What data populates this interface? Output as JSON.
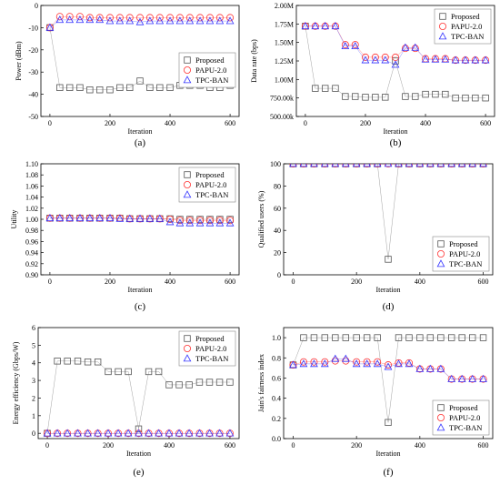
{
  "chart_data": [
    {
      "id": "a",
      "type": "scatter",
      "caption": "(a)",
      "xlabel": "Iteration",
      "ylabel": "Power (dBm)",
      "xlim": [
        -30,
        630
      ],
      "ylim": [
        -50,
        0
      ],
      "xticks": [
        0,
        200,
        400,
        600
      ],
      "yticks": [
        -50,
        -40,
        -30,
        -20,
        -10,
        0
      ],
      "ytick_labels": [
        "-50",
        "-40",
        "-30",
        "-20",
        "-10",
        "0"
      ],
      "legend_pos": "middle-right",
      "series": [
        {
          "name": "Proposed",
          "marker": "square",
          "color": "#555555",
          "x": [
            0,
            33,
            66,
            100,
            133,
            166,
            200,
            233,
            266,
            300,
            333,
            366,
            400,
            433,
            466,
            500,
            533,
            566,
            600
          ],
          "y": [
            -10,
            -37,
            -37,
            -37,
            -38,
            -38,
            -38,
            -37,
            -37,
            -34,
            -37,
            -37,
            -37,
            -36,
            -36,
            -36,
            -37,
            -37,
            -36
          ]
        },
        {
          "name": "PAPU-2.0",
          "marker": "circle",
          "color": "#ff3333",
          "x": [
            0,
            33,
            66,
            100,
            133,
            166,
            200,
            233,
            266,
            300,
            333,
            366,
            400,
            433,
            466,
            500,
            533,
            566,
            600
          ],
          "y": [
            -10,
            -5,
            -5,
            -5,
            -5.5,
            -5.5,
            -5.5,
            -5.5,
            -5.5,
            -5.5,
            -5.5,
            -5.5,
            -5.5,
            -5.5,
            -5.5,
            -5.5,
            -5.5,
            -5.5,
            -5.5
          ]
        },
        {
          "name": "TPC-BAN",
          "marker": "triangle",
          "color": "#3333ff",
          "x": [
            0,
            33,
            66,
            100,
            133,
            166,
            200,
            233,
            266,
            300,
            333,
            366,
            400,
            433,
            466,
            500,
            533,
            566,
            600
          ],
          "y": [
            -10,
            -6.5,
            -6.5,
            -6.5,
            -6.5,
            -6.5,
            -7,
            -7,
            -7,
            -7.5,
            -7,
            -7,
            -7,
            -7,
            -7,
            -7,
            -7,
            -7,
            -7
          ]
        }
      ]
    },
    {
      "id": "b",
      "type": "scatter",
      "caption": "(b)",
      "xlabel": "Iteration",
      "ylabel": "Data rate (bps)",
      "xlim": [
        -30,
        630
      ],
      "ylim": [
        500000,
        2000000
      ],
      "xticks": [
        0,
        200,
        400,
        600
      ],
      "yticks": [
        500000,
        750000,
        1000000,
        1250000,
        1500000,
        1750000,
        2000000
      ],
      "ytick_labels": [
        "500.00k",
        "750.00k",
        "1.00M",
        "1.25M",
        "1.50M",
        "1.75M",
        "2.00M"
      ],
      "legend_pos": "top-right",
      "series": [
        {
          "name": "Proposed",
          "marker": "square",
          "color": "#555555",
          "x": [
            0,
            33,
            66,
            100,
            133,
            166,
            200,
            233,
            266,
            300,
            333,
            366,
            400,
            433,
            466,
            500,
            533,
            566,
            600
          ],
          "y": [
            1720000,
            880000,
            880000,
            880000,
            770000,
            770000,
            760000,
            760000,
            760000,
            1250000,
            770000,
            770000,
            800000,
            800000,
            800000,
            750000,
            750000,
            750000,
            750000
          ]
        },
        {
          "name": "PAPU-2.0",
          "marker": "circle",
          "color": "#ff3333",
          "x": [
            0,
            33,
            66,
            100,
            133,
            166,
            200,
            233,
            266,
            300,
            333,
            366,
            400,
            433,
            466,
            500,
            533,
            566,
            600
          ],
          "y": [
            1720000,
            1720000,
            1720000,
            1720000,
            1470000,
            1470000,
            1300000,
            1300000,
            1300000,
            1300000,
            1420000,
            1420000,
            1280000,
            1280000,
            1280000,
            1260000,
            1260000,
            1260000,
            1260000
          ]
        },
        {
          "name": "TPC-BAN",
          "marker": "triangle",
          "color": "#3333ff",
          "x": [
            0,
            33,
            66,
            100,
            133,
            166,
            200,
            233,
            266,
            300,
            333,
            366,
            400,
            433,
            466,
            500,
            533,
            566,
            600
          ],
          "y": [
            1720000,
            1720000,
            1720000,
            1720000,
            1450000,
            1450000,
            1260000,
            1260000,
            1260000,
            1200000,
            1430000,
            1430000,
            1270000,
            1270000,
            1270000,
            1260000,
            1260000,
            1260000,
            1260000
          ]
        }
      ]
    },
    {
      "id": "c",
      "type": "scatter",
      "caption": "(c)",
      "xlabel": "Iteration",
      "ylabel": "Utility",
      "xlim": [
        -30,
        630
      ],
      "ylim": [
        0.9,
        1.1
      ],
      "xticks": [
        0,
        200,
        400,
        600
      ],
      "yticks": [
        0.9,
        0.92,
        0.94,
        0.96,
        0.98,
        1.0,
        1.02,
        1.04,
        1.06,
        1.08,
        1.1
      ],
      "ytick_labels": [
        "0.90",
        "0.92",
        "0.94",
        "0.96",
        "0.98",
        "1.00",
        "1.02",
        "1.04",
        "1.06",
        "1.08",
        "1.10"
      ],
      "legend_pos": "top-right",
      "series": [
        {
          "name": "Proposed",
          "marker": "square",
          "color": "#555555",
          "x": [
            0,
            33,
            66,
            100,
            133,
            166,
            200,
            233,
            266,
            300,
            333,
            366,
            400,
            433,
            466,
            500,
            533,
            566,
            600
          ],
          "y": [
            1.002,
            1.002,
            1.002,
            1.002,
            1.002,
            1.002,
            1.002,
            1.002,
            1.001,
            1.001,
            1.001,
            1.001,
            1.001,
            1.0,
            1.0,
            1.0,
            1.0,
            1.0,
            1.0
          ]
        },
        {
          "name": "PAPU-2.0",
          "marker": "circle",
          "color": "#ff3333",
          "x": [
            0,
            33,
            66,
            100,
            133,
            166,
            200,
            233,
            266,
            300,
            333,
            366,
            400,
            433,
            466,
            500,
            533,
            566,
            600
          ],
          "y": [
            1.002,
            1.002,
            1.002,
            1.002,
            1.002,
            1.002,
            1.002,
            1.002,
            1.001,
            1.001,
            1.001,
            1.001,
            1.0,
            0.998,
            0.998,
            0.998,
            0.998,
            0.998,
            0.998
          ]
        },
        {
          "name": "TPC-BAN",
          "marker": "triangle",
          "color": "#3333ff",
          "x": [
            0,
            33,
            66,
            100,
            133,
            166,
            200,
            233,
            266,
            300,
            333,
            366,
            400,
            433,
            466,
            500,
            533,
            566,
            600
          ],
          "y": [
            1.002,
            1.002,
            1.002,
            1.002,
            1.002,
            1.002,
            1.002,
            1.001,
            1.001,
            1.001,
            1.001,
            1.001,
            0.995,
            0.993,
            0.993,
            0.993,
            0.993,
            0.993,
            0.993
          ]
        }
      ]
    },
    {
      "id": "d",
      "type": "scatter",
      "caption": "(d)",
      "xlabel": "Iteration",
      "ylabel": "Qualified users (%)",
      "xlim": [
        -30,
        630
      ],
      "ylim": [
        0,
        100
      ],
      "xticks": [
        0,
        200,
        400,
        600
      ],
      "yticks": [
        0,
        20,
        40,
        60,
        80,
        100
      ],
      "ytick_labels": [
        "0",
        "20",
        "40",
        "60",
        "80",
        "100"
      ],
      "legend_pos": "bottom-right",
      "series": [
        {
          "name": "Proposed",
          "marker": "square",
          "color": "#555555",
          "x": [
            0,
            33,
            66,
            100,
            133,
            166,
            200,
            233,
            266,
            300,
            333,
            366,
            400,
            433,
            466,
            500,
            533,
            566,
            600
          ],
          "y": [
            100,
            100,
            100,
            100,
            100,
            100,
            100,
            100,
            100,
            14,
            100,
            100,
            100,
            100,
            100,
            100,
            100,
            100,
            100
          ]
        },
        {
          "name": "PAPU-2.0",
          "marker": "circle",
          "color": "#ff3333",
          "x": [
            0,
            33,
            66,
            100,
            133,
            166,
            200,
            233,
            266,
            300,
            333,
            366,
            400,
            433,
            466,
            500,
            533,
            566,
            600
          ],
          "y": [
            100,
            100,
            100,
            100,
            100,
            100,
            100,
            100,
            100,
            100,
            100,
            100,
            100,
            100,
            100,
            100,
            100,
            100,
            100
          ]
        },
        {
          "name": "TPC-BAN",
          "marker": "triangle",
          "color": "#3333ff",
          "x": [
            0,
            33,
            66,
            100,
            133,
            166,
            200,
            233,
            266,
            300,
            333,
            366,
            400,
            433,
            466,
            500,
            533,
            566,
            600
          ],
          "y": [
            100,
            100,
            100,
            100,
            100,
            100,
            100,
            100,
            100,
            100,
            100,
            100,
            100,
            100,
            100,
            100,
            100,
            100,
            100
          ]
        }
      ]
    },
    {
      "id": "e",
      "type": "scatter",
      "caption": "(e)",
      "xlabel": "Iteration",
      "ylabel": "Energy efficiency (Gbps/W)",
      "xlim": [
        -30,
        630
      ],
      "ylim": [
        -0.3,
        6
      ],
      "xticks": [
        0,
        200,
        400,
        600
      ],
      "yticks": [
        0,
        1,
        2,
        3,
        4,
        5,
        6
      ],
      "ytick_labels": [
        "0",
        "1",
        "2",
        "3",
        "4",
        "5",
        "6"
      ],
      "legend_pos": "top-right",
      "series": [
        {
          "name": "Proposed",
          "marker": "square",
          "color": "#555555",
          "x": [
            0,
            33,
            66,
            100,
            133,
            166,
            200,
            233,
            266,
            300,
            333,
            366,
            400,
            433,
            466,
            500,
            533,
            566,
            600
          ],
          "y": [
            0,
            4.1,
            4.1,
            4.1,
            4.05,
            4.05,
            3.5,
            3.5,
            3.5,
            0.25,
            3.5,
            3.5,
            2.75,
            2.75,
            2.75,
            2.9,
            2.9,
            2.9,
            2.9
          ]
        },
        {
          "name": "PAPU-2.0",
          "marker": "circle",
          "color": "#ff3333",
          "x": [
            0,
            33,
            66,
            100,
            133,
            166,
            200,
            233,
            266,
            300,
            333,
            366,
            400,
            433,
            466,
            500,
            533,
            566,
            600
          ],
          "y": [
            0,
            0,
            0,
            0,
            0,
            0,
            0,
            0,
            0,
            0,
            0,
            0,
            0,
            0,
            0,
            0,
            0,
            0,
            0
          ]
        },
        {
          "name": "TPC-BAN",
          "marker": "triangle",
          "color": "#3333ff",
          "x": [
            0,
            33,
            66,
            100,
            133,
            166,
            200,
            233,
            266,
            300,
            333,
            366,
            400,
            433,
            466,
            500,
            533,
            566,
            600
          ],
          "y": [
            0,
            0,
            0,
            0,
            0,
            0,
            0,
            0,
            0,
            0,
            0,
            0,
            0,
            0,
            0,
            0,
            0,
            0,
            0
          ]
        }
      ]
    },
    {
      "id": "f",
      "type": "scatter",
      "caption": "(f)",
      "xlabel": "Iteration",
      "ylabel": "Jain's fairness index",
      "xlim": [
        -30,
        630
      ],
      "ylim": [
        0,
        1.1
      ],
      "xticks": [
        0,
        200,
        400,
        600
      ],
      "yticks": [
        0,
        0.2,
        0.4,
        0.6,
        0.8,
        1.0
      ],
      "ytick_labels": [
        "0.0",
        "0.2",
        "0.4",
        "0.6",
        "0.8",
        "1.0"
      ],
      "legend_pos": "bottom-right",
      "series": [
        {
          "name": "Proposed",
          "marker": "square",
          "color": "#555555",
          "x": [
            0,
            33,
            66,
            100,
            133,
            166,
            200,
            233,
            266,
            300,
            333,
            366,
            400,
            433,
            466,
            500,
            533,
            566,
            600
          ],
          "y": [
            0.73,
            1.0,
            1.0,
            1.0,
            1.0,
            1.0,
            1.0,
            1.0,
            1.0,
            0.16,
            1.0,
            1.0,
            1.0,
            1.0,
            1.0,
            1.0,
            1.0,
            1.0,
            1.0
          ]
        },
        {
          "name": "PAPU-2.0",
          "marker": "circle",
          "color": "#ff3333",
          "x": [
            0,
            33,
            66,
            100,
            133,
            166,
            200,
            233,
            266,
            300,
            333,
            366,
            400,
            433,
            466,
            500,
            533,
            566,
            600
          ],
          "y": [
            0.73,
            0.76,
            0.76,
            0.76,
            0.77,
            0.77,
            0.76,
            0.76,
            0.76,
            0.73,
            0.75,
            0.75,
            0.69,
            0.69,
            0.69,
            0.59,
            0.59,
            0.59,
            0.59
          ]
        },
        {
          "name": "TPC-BAN",
          "marker": "triangle",
          "color": "#3333ff",
          "x": [
            0,
            33,
            66,
            100,
            133,
            166,
            200,
            233,
            266,
            300,
            333,
            366,
            400,
            433,
            466,
            500,
            533,
            566,
            600
          ],
          "y": [
            0.73,
            0.74,
            0.74,
            0.74,
            0.79,
            0.79,
            0.74,
            0.74,
            0.74,
            0.71,
            0.74,
            0.74,
            0.69,
            0.69,
            0.69,
            0.59,
            0.59,
            0.59,
            0.59
          ]
        }
      ]
    }
  ]
}
